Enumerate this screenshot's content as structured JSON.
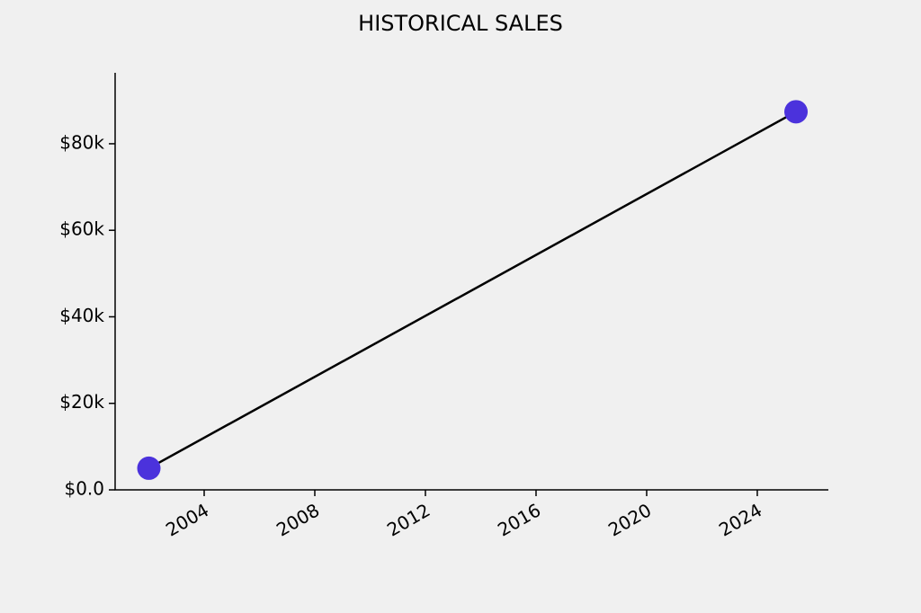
{
  "chart_data": {
    "type": "line",
    "title": "HISTORICAL SALES",
    "x": [
      2002.0,
      2025.4
    ],
    "values": [
      5000,
      87400
    ],
    "color": "#4b32dc",
    "line_color": "#000000",
    "xlim": [
      2000.78,
      2026.57
    ],
    "xticks": [
      2004,
      2008,
      2012,
      2016,
      2020,
      2024
    ],
    "ylim": [
      0,
      96400
    ],
    "yticks": [
      {
        "value": 0,
        "label": "$0.0"
      },
      {
        "value": 20000,
        "label": "$20k"
      },
      {
        "value": 40000,
        "label": "$40k"
      },
      {
        "value": 60000,
        "label": "$60k"
      },
      {
        "value": 80000,
        "label": "$80k"
      }
    ],
    "grid": false
  }
}
